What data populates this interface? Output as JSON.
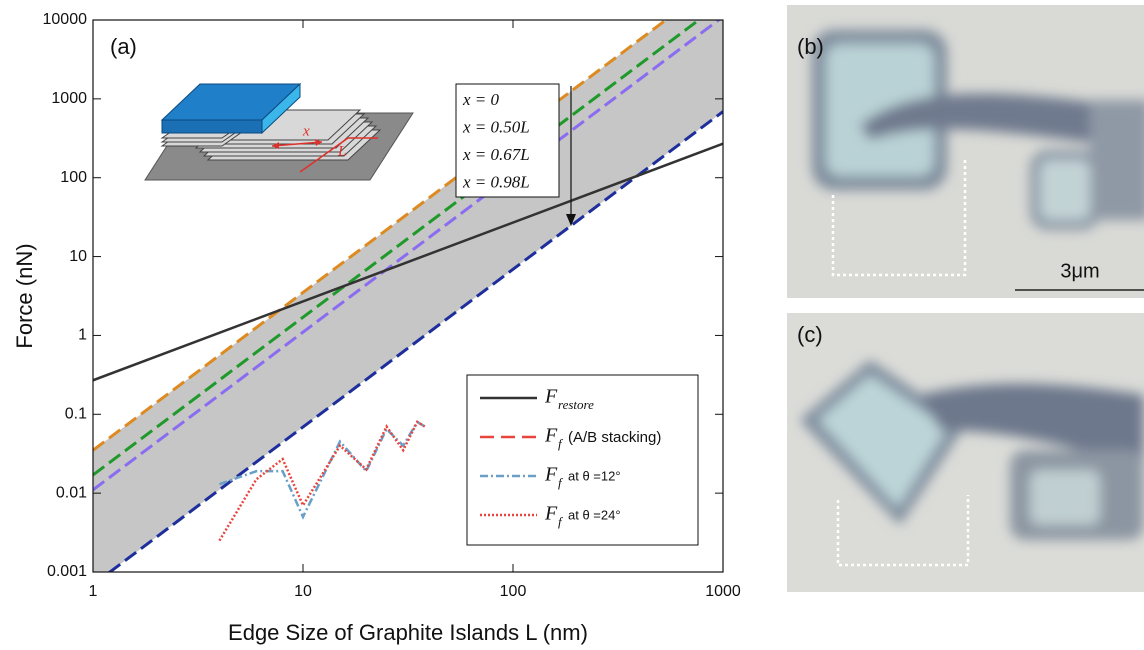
{
  "chart_data": {
    "type": "line",
    "panel_label": "(a)",
    "x_label": "Edge Size of Graphite Islands L (nm)",
    "y_label": "Force (nN)",
    "log_x": true,
    "log_y": true,
    "xlim": [
      1,
      1000
    ],
    "ylim": [
      0.001,
      10000
    ],
    "xticks": [
      1,
      10,
      100,
      1000
    ],
    "yticks": [
      0.001,
      0.01,
      0.1,
      1,
      10,
      100,
      1000,
      10000
    ],
    "band_color": "#c6c6c6",
    "series": [
      {
        "name": "F",
        "subscript": "restore",
        "color": "#333333",
        "dash": "none",
        "x": [
          1,
          1000
        ],
        "values": [
          0.27,
          270
        ]
      },
      {
        "name": "F",
        "subscript": "f",
        "suffix": "(A/B stacking)",
        "color": "#e8463c",
        "dash": "14,7"
      },
      {
        "name": "F",
        "subscript": "f",
        "suffix": "at θ =12°",
        "color": "#6a9fc8",
        "dash": "8,3,2,3",
        "x": [
          4,
          6,
          8,
          10,
          15,
          20,
          25,
          30,
          35,
          38
        ],
        "values": [
          0.013,
          0.019,
          0.019,
          0.005,
          0.045,
          0.019,
          0.065,
          0.04,
          0.08,
          0.07
        ]
      },
      {
        "name": "F",
        "subscript": "f",
        "suffix": "at θ =24°",
        "color": "#e8463c",
        "dash": "2,2",
        "x": [
          4,
          6,
          8,
          10,
          15,
          20,
          25,
          30,
          35,
          38
        ],
        "values": [
          0.0025,
          0.015,
          0.027,
          0.007,
          0.04,
          0.02,
          0.07,
          0.035,
          0.08,
          0.07
        ]
      }
    ],
    "boundary_lines": [
      {
        "name": "x = 0",
        "color": "#dd8a20",
        "x": [
          1,
          1000
        ],
        "values": [
          0.035,
          35000
        ]
      },
      {
        "name": "x = 0.50L",
        "color": "#1f9a2a",
        "x": [
          1,
          1000
        ],
        "values": [
          0.017,
          17000
        ]
      },
      {
        "name": "x = 0.67L",
        "color": "#8a6cf0",
        "x": [
          1,
          1000
        ],
        "values": [
          0.011,
          11000
        ]
      },
      {
        "name": "x = 0.98L",
        "color": "#1e2f9c",
        "x": [
          1,
          1000
        ],
        "values": [
          0.00069,
          690
        ]
      }
    ]
  },
  "inset": {
    "labels": [
      "x",
      "L"
    ]
  },
  "panels": [
    {
      "label": "(b)",
      "scale_bar": "3μm"
    },
    {
      "label": "(c)"
    }
  ]
}
